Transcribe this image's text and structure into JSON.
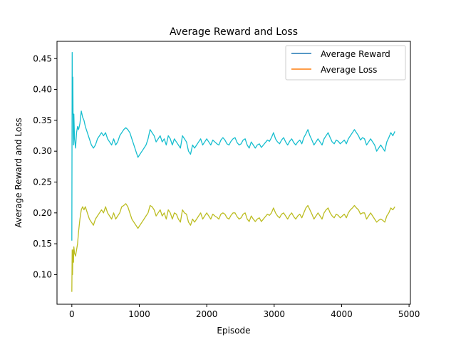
{
  "chart_data": {
    "type": "line",
    "title": "Average Reward and Loss",
    "xlabel": "Episode",
    "ylabel": "Average Reward and Loss",
    "xlim": [
      -220,
      5020
    ],
    "ylim": [
      0.052,
      0.478
    ],
    "xticks": [
      0,
      1000,
      2000,
      3000,
      4000,
      5000
    ],
    "yticks": [
      0.1,
      0.15,
      0.2,
      0.25,
      0.3,
      0.35,
      0.4,
      0.45
    ],
    "xtick_labels": [
      "0",
      "1000",
      "2000",
      "3000",
      "4000",
      "5000"
    ],
    "ytick_labels": [
      "0.10",
      "0.15",
      "0.20",
      "0.25",
      "0.30",
      "0.35",
      "0.40",
      "0.45"
    ],
    "grid": false,
    "legend_position": "top-right",
    "legend": [
      {
        "name": "Average Reward",
        "color": "#1f77b4"
      },
      {
        "name": "Average Loss",
        "color": "#ff7f0e"
      }
    ],
    "series": [
      {
        "color": "#17becf",
        "x": [
          0,
          5,
          10,
          15,
          20,
          25,
          30,
          40,
          55,
          70,
          85,
          100,
          120,
          140,
          160,
          180,
          200,
          230,
          260,
          290,
          320,
          350,
          380,
          410,
          440,
          470,
          500,
          530,
          560,
          590,
          620,
          650,
          680,
          710,
          740,
          770,
          800,
          830,
          860,
          890,
          920,
          950,
          980,
          1010,
          1040,
          1070,
          1100,
          1130,
          1160,
          1190,
          1220,
          1250,
          1280,
          1310,
          1340,
          1370,
          1400,
          1430,
          1460,
          1490,
          1520,
          1550,
          1580,
          1610,
          1640,
          1670,
          1700,
          1730,
          1760,
          1790,
          1820,
          1850,
          1880,
          1910,
          1940,
          1970,
          2000,
          2030,
          2060,
          2090,
          2120,
          2150,
          2180,
          2210,
          2240,
          2270,
          2300,
          2330,
          2360,
          2390,
          2420,
          2450,
          2480,
          2510,
          2540,
          2570,
          2600,
          2630,
          2660,
          2690,
          2720,
          2750,
          2780,
          2810,
          2840,
          2870,
          2900,
          2930,
          2960,
          2990,
          3020,
          3050,
          3080,
          3110,
          3140,
          3170,
          3200,
          3230,
          3260,
          3290,
          3320,
          3350,
          3380,
          3410,
          3440,
          3470,
          3500,
          3530,
          3560,
          3590,
          3620,
          3650,
          3680,
          3710,
          3740,
          3770,
          3800,
          3830,
          3860,
          3890,
          3920,
          3950,
          3980,
          4010,
          4040,
          4070,
          4100,
          4130,
          4160,
          4190,
          4220,
          4250,
          4280,
          4310,
          4340,
          4370,
          4400,
          4430,
          4460,
          4490,
          4520,
          4550,
          4580,
          4610,
          4640,
          4670,
          4700,
          4730,
          4760,
          4790
        ],
        "values": [
          0.155,
          0.46,
          0.36,
          0.42,
          0.33,
          0.31,
          0.36,
          0.32,
          0.305,
          0.33,
          0.34,
          0.335,
          0.345,
          0.365,
          0.355,
          0.35,
          0.34,
          0.33,
          0.32,
          0.31,
          0.305,
          0.31,
          0.32,
          0.325,
          0.33,
          0.325,
          0.33,
          0.32,
          0.315,
          0.31,
          0.32,
          0.31,
          0.315,
          0.325,
          0.33,
          0.335,
          0.338,
          0.335,
          0.33,
          0.32,
          0.31,
          0.3,
          0.29,
          0.295,
          0.3,
          0.305,
          0.31,
          0.32,
          0.335,
          0.33,
          0.325,
          0.315,
          0.32,
          0.325,
          0.315,
          0.32,
          0.31,
          0.325,
          0.32,
          0.31,
          0.32,
          0.315,
          0.31,
          0.305,
          0.325,
          0.32,
          0.315,
          0.3,
          0.295,
          0.31,
          0.305,
          0.31,
          0.315,
          0.32,
          0.31,
          0.315,
          0.32,
          0.315,
          0.31,
          0.318,
          0.315,
          0.312,
          0.31,
          0.318,
          0.322,
          0.318,
          0.312,
          0.31,
          0.316,
          0.32,
          0.322,
          0.314,
          0.31,
          0.312,
          0.318,
          0.32,
          0.31,
          0.305,
          0.315,
          0.31,
          0.305,
          0.31,
          0.312,
          0.306,
          0.31,
          0.314,
          0.318,
          0.316,
          0.322,
          0.33,
          0.32,
          0.315,
          0.312,
          0.318,
          0.322,
          0.315,
          0.31,
          0.316,
          0.32,
          0.314,
          0.31,
          0.315,
          0.318,
          0.312,
          0.322,
          0.328,
          0.335,
          0.325,
          0.318,
          0.31,
          0.315,
          0.32,
          0.315,
          0.31,
          0.32,
          0.325,
          0.33,
          0.322,
          0.315,
          0.312,
          0.318,
          0.316,
          0.312,
          0.315,
          0.318,
          0.312,
          0.32,
          0.325,
          0.33,
          0.335,
          0.33,
          0.325,
          0.318,
          0.322,
          0.32,
          0.31,
          0.315,
          0.32,
          0.315,
          0.31,
          0.3,
          0.305,
          0.31,
          0.305,
          0.3,
          0.315,
          0.322,
          0.33,
          0.325,
          0.332
        ]
      },
      {
        "color": "#bcbd22",
        "x": [
          0,
          5,
          10,
          15,
          20,
          25,
          30,
          40,
          55,
          70,
          85,
          100,
          120,
          140,
          160,
          180,
          200,
          230,
          260,
          290,
          320,
          350,
          380,
          410,
          440,
          470,
          500,
          530,
          560,
          590,
          620,
          650,
          680,
          710,
          740,
          770,
          800,
          830,
          860,
          890,
          920,
          950,
          980,
          1010,
          1040,
          1070,
          1100,
          1130,
          1160,
          1190,
          1220,
          1250,
          1280,
          1310,
          1340,
          1370,
          1400,
          1430,
          1460,
          1490,
          1520,
          1550,
          1580,
          1610,
          1640,
          1670,
          1700,
          1730,
          1760,
          1790,
          1820,
          1850,
          1880,
          1910,
          1940,
          1970,
          2000,
          2030,
          2060,
          2090,
          2120,
          2150,
          2180,
          2210,
          2240,
          2270,
          2300,
          2330,
          2360,
          2390,
          2420,
          2450,
          2480,
          2510,
          2540,
          2570,
          2600,
          2630,
          2660,
          2690,
          2720,
          2750,
          2780,
          2810,
          2840,
          2870,
          2900,
          2930,
          2960,
          2990,
          3020,
          3050,
          3080,
          3110,
          3140,
          3170,
          3200,
          3230,
          3260,
          3290,
          3320,
          3350,
          3380,
          3410,
          3440,
          3470,
          3500,
          3530,
          3560,
          3590,
          3620,
          3650,
          3680,
          3710,
          3740,
          3770,
          3800,
          3830,
          3860,
          3890,
          3920,
          3950,
          3980,
          4010,
          4040,
          4070,
          4100,
          4130,
          4160,
          4190,
          4220,
          4250,
          4280,
          4310,
          4340,
          4370,
          4400,
          4430,
          4460,
          4490,
          4520,
          4550,
          4580,
          4610,
          4640,
          4670,
          4700,
          4730,
          4760,
          4790
        ],
        "values": [
          0.072,
          0.14,
          0.1,
          0.13,
          0.14,
          0.12,
          0.145,
          0.135,
          0.13,
          0.14,
          0.15,
          0.17,
          0.19,
          0.205,
          0.21,
          0.205,
          0.21,
          0.2,
          0.19,
          0.185,
          0.18,
          0.19,
          0.195,
          0.2,
          0.205,
          0.2,
          0.21,
          0.2,
          0.195,
          0.19,
          0.2,
          0.19,
          0.195,
          0.2,
          0.21,
          0.212,
          0.215,
          0.21,
          0.2,
          0.19,
          0.185,
          0.18,
          0.175,
          0.18,
          0.185,
          0.19,
          0.195,
          0.2,
          0.212,
          0.21,
          0.205,
          0.195,
          0.2,
          0.205,
          0.195,
          0.2,
          0.19,
          0.205,
          0.2,
          0.19,
          0.2,
          0.198,
          0.19,
          0.185,
          0.205,
          0.2,
          0.198,
          0.185,
          0.18,
          0.19,
          0.185,
          0.19,
          0.195,
          0.2,
          0.19,
          0.195,
          0.2,
          0.195,
          0.19,
          0.198,
          0.195,
          0.193,
          0.19,
          0.198,
          0.2,
          0.198,
          0.192,
          0.19,
          0.196,
          0.2,
          0.2,
          0.194,
          0.19,
          0.192,
          0.198,
          0.2,
          0.19,
          0.186,
          0.195,
          0.19,
          0.186,
          0.19,
          0.192,
          0.186,
          0.19,
          0.194,
          0.198,
          0.196,
          0.2,
          0.208,
          0.2,
          0.195,
          0.192,
          0.198,
          0.2,
          0.195,
          0.19,
          0.196,
          0.2,
          0.194,
          0.19,
          0.195,
          0.198,
          0.192,
          0.2,
          0.208,
          0.212,
          0.205,
          0.198,
          0.19,
          0.195,
          0.2,
          0.195,
          0.19,
          0.2,
          0.205,
          0.208,
          0.2,
          0.195,
          0.192,
          0.198,
          0.196,
          0.192,
          0.195,
          0.198,
          0.192,
          0.2,
          0.205,
          0.208,
          0.212,
          0.208,
          0.205,
          0.198,
          0.2,
          0.2,
          0.19,
          0.195,
          0.2,
          0.195,
          0.19,
          0.185,
          0.188,
          0.19,
          0.188,
          0.185,
          0.195,
          0.2,
          0.208,
          0.205,
          0.21
        ]
      }
    ]
  }
}
